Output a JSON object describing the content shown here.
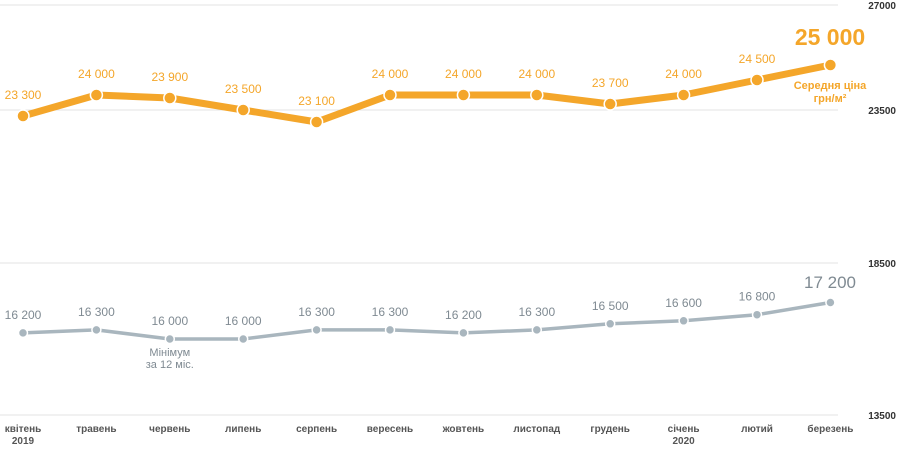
{
  "chart_data": {
    "type": "line",
    "categories": [
      "квітень",
      "травень",
      "червень",
      "липень",
      "серпень",
      "вересень",
      "жовтень",
      "листопад",
      "грудень",
      "січень",
      "лютий",
      "березень"
    ],
    "category_sublabels": [
      "2019",
      "",
      "",
      "",
      "",
      "",
      "",
      "",
      "",
      "2020",
      "",
      ""
    ],
    "right_axis_ticks": [
      "27000",
      "23500",
      "18500",
      "13500"
    ],
    "series": [
      {
        "name": "Середня ціна грн/м²",
        "name_lines": [
          "Середня ціна",
          "грн/м²"
        ],
        "color": "#f4a62a",
        "values": [
          23300,
          24000,
          23900,
          23500,
          23100,
          24000,
          24000,
          24000,
          23700,
          24000,
          24500,
          25000
        ],
        "labels": [
          "23 300",
          "24 000",
          "23 900",
          "23 500",
          "23 100",
          "24 000",
          "24 000",
          "24 000",
          "23 700",
          "24 000",
          "24 500",
          "25 000"
        ],
        "axis_range": [
          23500,
          27000
        ]
      },
      {
        "color": "#a9b6be",
        "values": [
          16200,
          16300,
          16000,
          16000,
          16300,
          16300,
          16200,
          16300,
          16500,
          16600,
          16800,
          17200
        ],
        "labels": [
          "16 200",
          "16 300",
          "16 000",
          "16 000",
          "16 300",
          "16 300",
          "16 200",
          "16 300",
          "16 500",
          "16 600",
          "16 800",
          "17 200"
        ],
        "axis_range": [
          13500,
          18500
        ],
        "annotation": {
          "index": 2,
          "lines": [
            "Мінімум",
            "за 12 міс."
          ]
        }
      }
    ],
    "grid": true,
    "legend": "inline-right"
  }
}
